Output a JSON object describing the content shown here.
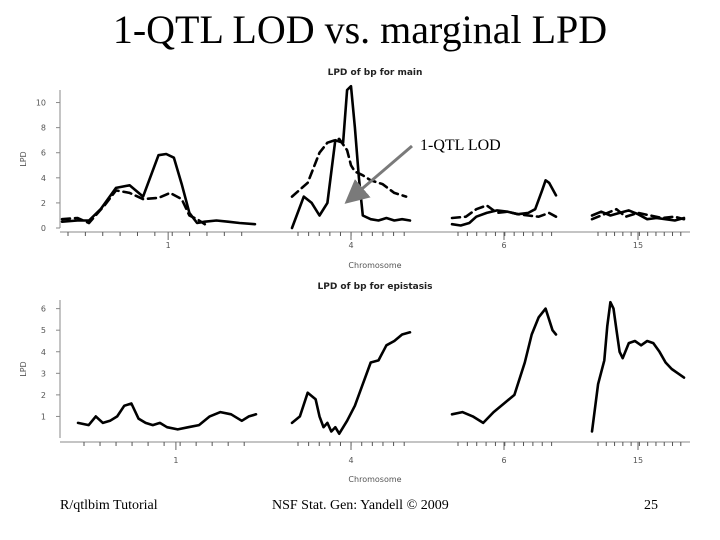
{
  "slide": {
    "title": "1-QTL LOD vs. marginal LPD",
    "footer_left": "R/qtlbim Tutorial",
    "footer_center": "NSF Stat. Gen: Yandell © 2009",
    "page_number": "25"
  },
  "colors": {
    "line": "#000000",
    "arrow": "#7a7a7a",
    "axis_text": "#555555"
  },
  "chart_data": [
    {
      "type": "line",
      "title": "LPD of bp for main",
      "xlabel": "Chromosome",
      "ylabel": "LPD",
      "ylim": [
        0,
        11
      ],
      "yticks": [
        "0",
        "2",
        "4",
        "6",
        "8",
        "10"
      ],
      "chromosomes": [
        {
          "label": "1",
          "xlim": [
            0,
            100
          ],
          "label_pos": 55
        },
        {
          "label": "4",
          "xlim": [
            0,
            60
          ],
          "label_pos": 30
        },
        {
          "label": "6",
          "xlim": [
            0,
            60
          ],
          "label_pos": 30
        },
        {
          "label": "15",
          "xlim": [
            0,
            60
          ],
          "label_pos": 30
        }
      ],
      "series": [
        {
          "name": "marginal LPD",
          "style": "solid",
          "segments": [
            {
              "chrom": 0,
              "x": [
                0,
                8,
                14,
                20,
                28,
                35,
                42,
                50,
                54,
                58,
                62,
                66,
                70,
                74,
                80,
                86,
                92,
                100
              ],
              "y": [
                0.5,
                0.6,
                0.6,
                1.5,
                3.2,
                3.4,
                2.5,
                5.8,
                5.9,
                5.6,
                3.5,
                1.2,
                0.4,
                0.5,
                0.6,
                0.5,
                0.4,
                0.3
              ]
            },
            {
              "chrom": 1,
              "x": [
                0,
                6,
                10,
                14,
                18,
                22,
                26,
                28,
                30,
                32,
                34,
                36,
                40,
                44,
                48,
                52,
                56,
                60
              ],
              "y": [
                0,
                2.5,
                2.0,
                1.0,
                2.0,
                7.0,
                6.8,
                11.0,
                11.3,
                8.0,
                4.0,
                1.0,
                0.7,
                0.6,
                0.8,
                0.6,
                0.7,
                0.6
              ]
            },
            {
              "chrom": 2,
              "x": [
                0,
                5,
                10,
                14,
                20,
                26,
                32,
                38,
                44,
                48,
                52,
                54,
                56,
                60
              ],
              "y": [
                0.3,
                0.2,
                0.4,
                0.9,
                1.2,
                1.4,
                1.3,
                1.1,
                1.2,
                1.5,
                3.0,
                3.8,
                3.6,
                2.6
              ]
            },
            {
              "chrom": 3,
              "x": [
                0,
                6,
                12,
                18,
                24,
                30,
                36,
                42,
                48,
                54,
                60
              ],
              "y": [
                1.0,
                1.3,
                1.0,
                1.2,
                1.4,
                1.1,
                0.7,
                0.8,
                0.7,
                0.6,
                0.8
              ]
            }
          ]
        },
        {
          "name": "1-QTL LOD",
          "style": "dashed",
          "segments": [
            {
              "chrom": 0,
              "x": [
                0,
                8,
                14,
                22,
                28,
                35,
                42,
                50,
                56,
                62,
                66,
                70,
                74
              ],
              "y": [
                0.7,
                0.8,
                0.4,
                1.8,
                3.0,
                2.8,
                2.3,
                2.4,
                2.8,
                2.3,
                1.0,
                0.7,
                0.3
              ]
            },
            {
              "chrom": 1,
              "x": [
                0,
                8,
                14,
                18,
                24,
                28,
                30,
                32,
                36,
                40,
                46,
                52,
                58
              ],
              "y": [
                2.5,
                3.6,
                6.0,
                6.8,
                7.1,
                6.2,
                5.0,
                4.5,
                4.2,
                3.8,
                3.5,
                2.8,
                2.5
              ]
            },
            {
              "chrom": 2,
              "x": [
                0,
                8,
                14,
                20,
                26,
                32,
                38,
                44,
                50,
                56,
                60
              ],
              "y": [
                0.8,
                0.9,
                1.5,
                1.8,
                1.2,
                1.3,
                1.1,
                1.0,
                0.9,
                1.2,
                0.9
              ]
            },
            {
              "chrom": 3,
              "x": [
                0,
                8,
                16,
                22,
                30,
                38,
                46,
                54,
                60
              ],
              "y": [
                0.7,
                1.1,
                1.5,
                0.9,
                1.2,
                1.0,
                0.8,
                0.9,
                0.7
              ]
            }
          ]
        }
      ],
      "annotation": {
        "label": "1-QTL LOD",
        "target_chrom": 1,
        "target_x": 27,
        "target_y": 2.0
      }
    },
    {
      "type": "line",
      "title": "LPD of bp for epistasis",
      "xlabel": "Chromosome",
      "ylabel": "LPD",
      "ylim": [
        0,
        6.4
      ],
      "yticks": [
        "1",
        "2",
        "3",
        "4",
        "5",
        "6"
      ],
      "chromosomes": [
        {
          "label": "1",
          "xlim": [
            0,
            100
          ],
          "label_pos": 55
        },
        {
          "label": "4",
          "xlim": [
            0,
            60
          ],
          "label_pos": 30
        },
        {
          "label": "6",
          "xlim": [
            0,
            60
          ],
          "label_pos": 30
        },
        {
          "label": "15",
          "xlim": [
            0,
            60
          ],
          "label_pos": 30
        }
      ],
      "series": [
        {
          "name": "marginal LPD",
          "style": "solid",
          "segments": [
            {
              "chrom": 0,
              "x": [
                0,
                6,
                10,
                14,
                18,
                22,
                26,
                30,
                34,
                38,
                42,
                46,
                50,
                56,
                62,
                68,
                74,
                80,
                86,
                92,
                96,
                100
              ],
              "y": [
                0.7,
                0.6,
                1.0,
                0.7,
                0.8,
                1.0,
                1.5,
                1.6,
                0.9,
                0.7,
                0.6,
                0.7,
                0.5,
                0.4,
                0.5,
                0.6,
                1.0,
                1.2,
                1.1,
                0.8,
                1.0,
                1.1
              ]
            },
            {
              "chrom": 1,
              "x": [
                0,
                4,
                8,
                12,
                14,
                16,
                18,
                20,
                22,
                24,
                28,
                32,
                36,
                40,
                44,
                48,
                52,
                56,
                60
              ],
              "y": [
                0.7,
                1.0,
                2.1,
                1.8,
                1.0,
                0.5,
                0.7,
                0.3,
                0.5,
                0.2,
                0.8,
                1.5,
                2.5,
                3.5,
                3.6,
                4.3,
                4.5,
                4.8,
                4.9
              ]
            },
            {
              "chrom": 2,
              "x": [
                0,
                6,
                12,
                18,
                24,
                30,
                36,
                42,
                46,
                50,
                54,
                58,
                60
              ],
              "y": [
                1.1,
                1.2,
                1.0,
                0.7,
                1.2,
                1.6,
                2.0,
                3.5,
                4.8,
                5.6,
                6.0,
                5.0,
                4.8
              ]
            },
            {
              "chrom": 3,
              "x": [
                0,
                4,
                8,
                10,
                12,
                14,
                16,
                18,
                20,
                24,
                28,
                32,
                36,
                40,
                44,
                48,
                52,
                56,
                60
              ],
              "y": [
                0.3,
                2.5,
                3.6,
                5.2,
                6.3,
                6.0,
                5.0,
                4.0,
                3.7,
                4.4,
                4.5,
                4.3,
                4.5,
                4.4,
                4.0,
                3.5,
                3.2,
                3.0,
                2.8
              ]
            }
          ]
        }
      ]
    }
  ]
}
